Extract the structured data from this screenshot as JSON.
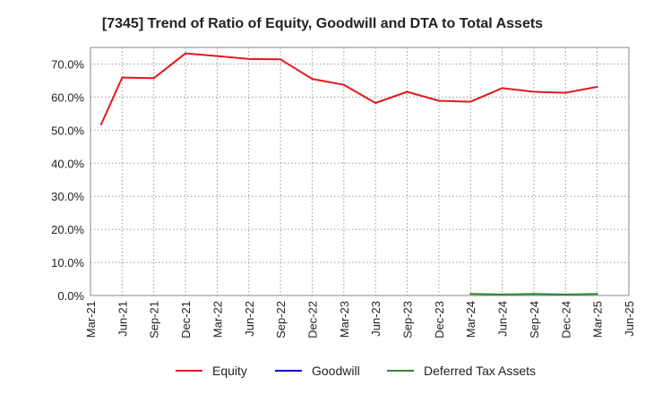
{
  "chart_data": {
    "type": "line",
    "title": "[7345]  Trend of Ratio of Equity, Goodwill and DTA to Total Assets",
    "xlabel": "",
    "ylabel": "",
    "ylim": [
      0,
      75
    ],
    "y_ticks": [
      "0.0%",
      "10.0%",
      "20.0%",
      "30.0%",
      "40.0%",
      "50.0%",
      "60.0%",
      "70.0%"
    ],
    "x_ticks": [
      "Mar-21",
      "Jun-21",
      "Sep-21",
      "Dec-21",
      "Mar-22",
      "Jun-22",
      "Sep-22",
      "Dec-22",
      "Mar-23",
      "Jun-23",
      "Sep-23",
      "Dec-23",
      "Mar-24",
      "Jun-24",
      "Sep-24",
      "Dec-24",
      "Mar-25",
      "Jun-25"
    ],
    "grid": true,
    "legend_position": "bottom",
    "series": [
      {
        "name": "Equity",
        "color": "#e31a1c",
        "points": [
          {
            "x": "Apr-21",
            "y": 51.7
          },
          {
            "x": "Jun-21",
            "y": 65.9
          },
          {
            "x": "Sep-21",
            "y": 65.7
          },
          {
            "x": "Dec-21",
            "y": 73.2
          },
          {
            "x": "Mar-22",
            "y": 72.4
          },
          {
            "x": "Jun-22",
            "y": 71.5
          },
          {
            "x": "Sep-22",
            "y": 71.4
          },
          {
            "x": "Dec-22",
            "y": 65.5
          },
          {
            "x": "Mar-23",
            "y": 63.7
          },
          {
            "x": "Jun-23",
            "y": 58.2
          },
          {
            "x": "Sep-23",
            "y": 61.6
          },
          {
            "x": "Dec-23",
            "y": 58.9
          },
          {
            "x": "Mar-24",
            "y": 58.6
          },
          {
            "x": "Jun-24",
            "y": 62.7
          },
          {
            "x": "Sep-24",
            "y": 61.6
          },
          {
            "x": "Dec-24",
            "y": 61.3
          },
          {
            "x": "Mar-25",
            "y": 63.1
          }
        ]
      },
      {
        "name": "Goodwill",
        "color": "#0000cc",
        "points": []
      },
      {
        "name": "Deferred Tax Assets",
        "color": "#2e8b2e",
        "points": [
          {
            "x": "Mar-24",
            "y": 0.5
          },
          {
            "x": "Jun-24",
            "y": 0.3
          },
          {
            "x": "Sep-24",
            "y": 0.5
          },
          {
            "x": "Dec-24",
            "y": 0.3
          },
          {
            "x": "Mar-25",
            "y": 0.5
          }
        ]
      }
    ]
  }
}
